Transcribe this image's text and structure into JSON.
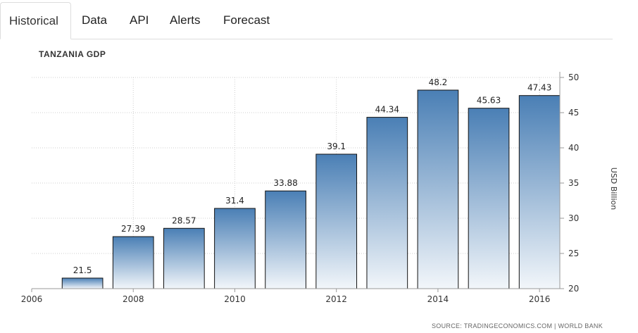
{
  "tabs": [
    {
      "label": "Historical",
      "active": true
    },
    {
      "label": "Data",
      "active": false
    },
    {
      "label": "API",
      "active": false
    },
    {
      "label": "Alerts",
      "active": false
    },
    {
      "label": "Forecast",
      "active": false
    }
  ],
  "chart_data": {
    "type": "bar",
    "title": "TANZANIA GDP",
    "ylabel": "USD Billion",
    "xlabel": "",
    "categories": [
      "2007",
      "2008",
      "2009",
      "2010",
      "2011",
      "2012",
      "2013",
      "2014",
      "2015",
      "2016"
    ],
    "values": [
      21.5,
      27.39,
      28.57,
      31.4,
      33.88,
      39.1,
      44.34,
      48.2,
      45.63,
      47.43
    ],
    "value_labels": [
      "21.5",
      "27.39",
      "28.57",
      "31.4",
      "33.88",
      "39.1",
      "44.34",
      "48.2",
      "45.63",
      "47.43"
    ],
    "x_ticks": [
      "2006",
      "2008",
      "2010",
      "2012",
      "2014",
      "2016"
    ],
    "y_ticks": [
      "20",
      "25",
      "30",
      "35",
      "40",
      "45",
      "50"
    ],
    "ylim": [
      20,
      50
    ],
    "x_range": [
      2006,
      2016.4
    ],
    "y_axis_side": "right",
    "grid": true,
    "bar_color_top": "#4a7fb5",
    "bar_color_bottom": "#f2f6fa",
    "bar_border": "#111111",
    "source": "SOURCE: TRADINGECONOMICS.COM | WORLD BANK"
  }
}
